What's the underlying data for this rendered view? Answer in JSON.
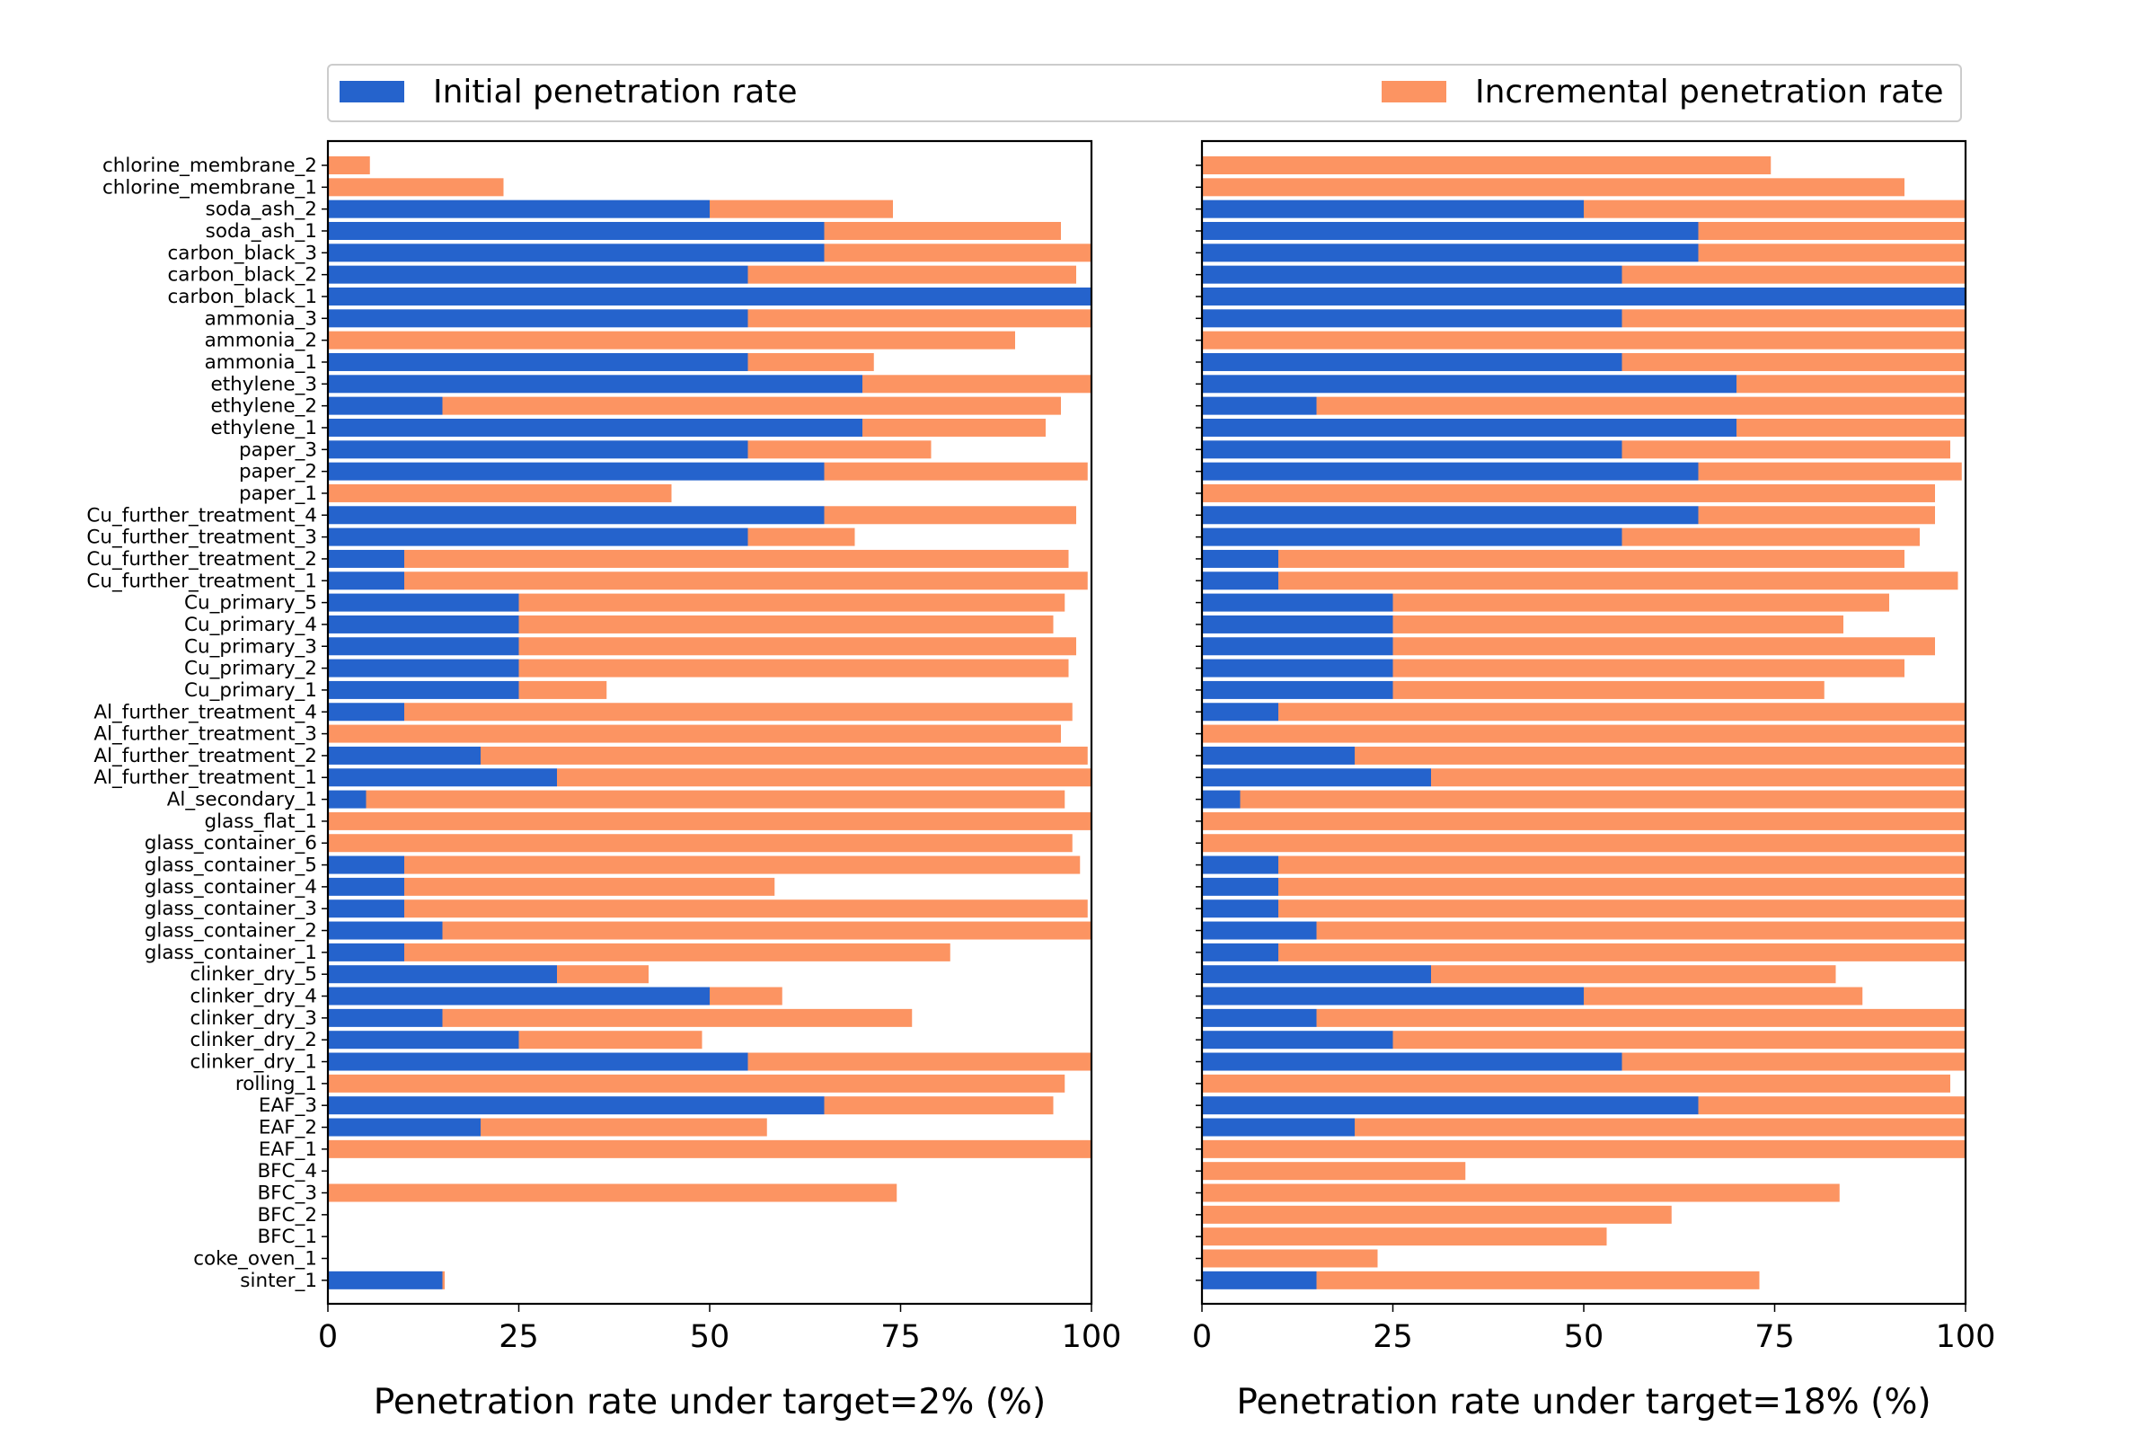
{
  "colors": {
    "initial": "#2563CC",
    "incremental": "#FC9462"
  },
  "legend": {
    "initial_label": "Initial penetration rate",
    "incremental_label": "Incremental penetration rate",
    "placement": "top, spanning both panels"
  },
  "chart_data": [
    {
      "type": "bar",
      "orientation": "horizontal",
      "stacked": true,
      "xlabel": "Penetration rate under target=2% (%)",
      "ylabel": "",
      "xlim": [
        0,
        100
      ],
      "xticks": [
        "0",
        "25",
        "50",
        "75",
        "100"
      ],
      "categories": [
        "chlorine_membrane_2",
        "chlorine_membrane_1",
        "soda_ash_2",
        "soda_ash_1",
        "carbon_black_3",
        "carbon_black_2",
        "carbon_black_1",
        "ammonia_3",
        "ammonia_2",
        "ammonia_1",
        "ethylene_3",
        "ethylene_2",
        "ethylene_1",
        "paper_3",
        "paper_2",
        "paper_1",
        "Cu_further_treatment_4",
        "Cu_further_treatment_3",
        "Cu_further_treatment_2",
        "Cu_further_treatment_1",
        "Cu_primary_5",
        "Cu_primary_4",
        "Cu_primary_3",
        "Cu_primary_2",
        "Cu_primary_1",
        "Al_further_treatment_4",
        "Al_further_treatment_3",
        "Al_further_treatment_2",
        "Al_further_treatment_1",
        "Al_secondary_1",
        "glass_flat_1",
        "glass_container_6",
        "glass_container_5",
        "glass_container_4",
        "glass_container_3",
        "glass_container_2",
        "glass_container_1",
        "clinker_dry_5",
        "clinker_dry_4",
        "clinker_dry_3",
        "clinker_dry_2",
        "clinker_dry_1",
        "rolling_1",
        "EAF_3",
        "EAF_2",
        "EAF_1",
        "BFC_4",
        "BFC_3",
        "BFC_2",
        "BFC_1",
        "coke_oven_1",
        "sinter_1"
      ],
      "series": [
        {
          "name": "Initial penetration rate",
          "values": [
            0,
            0,
            50,
            65,
            65,
            55,
            100,
            55,
            0,
            55,
            70,
            15,
            70,
            55,
            65,
            0,
            65,
            55,
            10,
            10,
            25,
            25,
            25,
            25,
            25,
            10,
            0,
            20,
            30,
            5,
            0,
            0,
            10,
            10,
            10,
            15,
            10,
            30,
            50,
            15,
            25,
            55,
            0,
            65,
            20,
            0,
            0,
            0,
            0,
            0,
            0,
            15
          ]
        },
        {
          "name": "Incremental penetration rate",
          "values": [
            5.5,
            23,
            24,
            31,
            35,
            43,
            0,
            45,
            90,
            16.5,
            30,
            81,
            24,
            24,
            34.5,
            45,
            33,
            14,
            87,
            89.5,
            71.5,
            70,
            73,
            72,
            11.5,
            87.5,
            96,
            79.5,
            70,
            91.5,
            100,
            97.5,
            88.5,
            48.5,
            89.5,
            85,
            71.5,
            12,
            9.5,
            61.5,
            24,
            45,
            96.5,
            30,
            37.5,
            100,
            0,
            74.5,
            0,
            0,
            0,
            0.3
          ]
        }
      ]
    },
    {
      "type": "bar",
      "orientation": "horizontal",
      "stacked": true,
      "xlabel": "Penetration rate under target=18% (%)",
      "ylabel": "",
      "xlim": [
        0,
        100
      ],
      "xticks": [
        "0",
        "25",
        "50",
        "75",
        "100"
      ],
      "categories": [
        "chlorine_membrane_2",
        "chlorine_membrane_1",
        "soda_ash_2",
        "soda_ash_1",
        "carbon_black_3",
        "carbon_black_2",
        "carbon_black_1",
        "ammonia_3",
        "ammonia_2",
        "ammonia_1",
        "ethylene_3",
        "ethylene_2",
        "ethylene_1",
        "paper_3",
        "paper_2",
        "paper_1",
        "Cu_further_treatment_4",
        "Cu_further_treatment_3",
        "Cu_further_treatment_2",
        "Cu_further_treatment_1",
        "Cu_primary_5",
        "Cu_primary_4",
        "Cu_primary_3",
        "Cu_primary_2",
        "Cu_primary_1",
        "Al_further_treatment_4",
        "Al_further_treatment_3",
        "Al_further_treatment_2",
        "Al_further_treatment_1",
        "Al_secondary_1",
        "glass_flat_1",
        "glass_container_6",
        "glass_container_5",
        "glass_container_4",
        "glass_container_3",
        "glass_container_2",
        "glass_container_1",
        "clinker_dry_5",
        "clinker_dry_4",
        "clinker_dry_3",
        "clinker_dry_2",
        "clinker_dry_1",
        "rolling_1",
        "EAF_3",
        "EAF_2",
        "EAF_1",
        "BFC_4",
        "BFC_3",
        "BFC_2",
        "BFC_1",
        "coke_oven_1",
        "sinter_1"
      ],
      "series": [
        {
          "name": "Initial penetration rate",
          "values": [
            0,
            0,
            50,
            65,
            65,
            55,
            100,
            55,
            0,
            55,
            70,
            15,
            70,
            55,
            65,
            0,
            65,
            55,
            10,
            10,
            25,
            25,
            25,
            25,
            25,
            10,
            0,
            20,
            30,
            5,
            0,
            0,
            10,
            10,
            10,
            15,
            10,
            30,
            50,
            15,
            25,
            55,
            0,
            65,
            20,
            0,
            0,
            0,
            0,
            0,
            0,
            15
          ]
        },
        {
          "name": "Incremental penetration rate",
          "values": [
            74.5,
            92,
            50,
            35,
            35,
            45,
            0,
            45,
            100,
            45,
            30,
            85,
            30,
            43,
            34.5,
            96,
            31,
            39,
            82,
            89,
            65,
            59,
            71,
            67,
            56.5,
            90,
            100,
            80,
            70,
            95,
            100,
            100,
            90,
            90,
            90,
            85,
            90,
            53,
            36.5,
            85,
            75,
            45,
            98,
            35,
            80,
            100,
            34.5,
            83.5,
            61.5,
            53,
            23,
            58
          ]
        }
      ]
    }
  ]
}
